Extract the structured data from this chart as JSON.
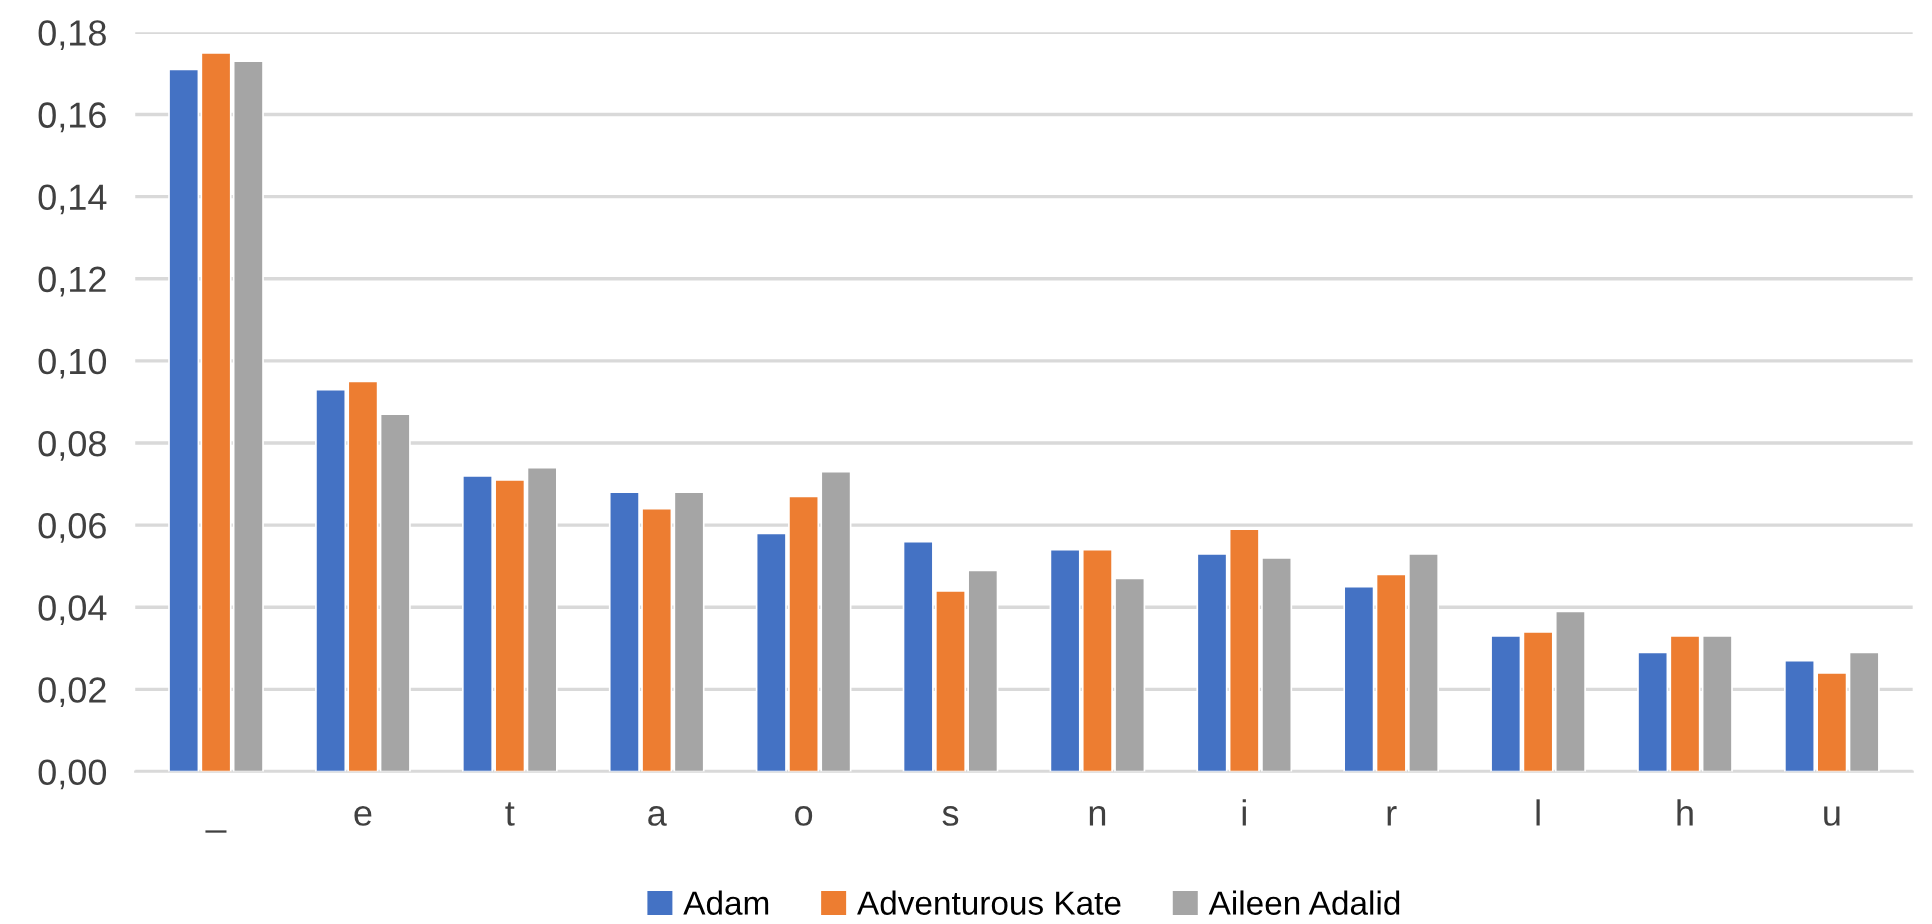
{
  "chart_data": {
    "type": "bar",
    "categories": [
      "_",
      "e",
      "t",
      "a",
      "o",
      "s",
      "n",
      "i",
      "r",
      "l",
      "h",
      "u"
    ],
    "series": [
      {
        "name": "Adam",
        "color": "#4472c4",
        "values": [
          0.171,
          0.093,
          0.072,
          0.068,
          0.058,
          0.056,
          0.054,
          0.053,
          0.045,
          0.033,
          0.029,
          0.027
        ]
      },
      {
        "name": "Adventurous Kate",
        "color": "#ed7d31",
        "values": [
          0.175,
          0.095,
          0.071,
          0.064,
          0.067,
          0.044,
          0.054,
          0.059,
          0.048,
          0.034,
          0.033,
          0.024
        ]
      },
      {
        "name": "Aileen Adalid",
        "color": "#a5a5a5",
        "values": [
          0.173,
          0.087,
          0.074,
          0.068,
          0.073,
          0.049,
          0.047,
          0.052,
          0.053,
          0.039,
          0.033,
          0.029
        ]
      }
    ],
    "ylim": [
      0,
      0.18
    ],
    "yticks": [
      {
        "value": 0,
        "label": "0,00"
      },
      {
        "value": 0.02,
        "label": "0,02"
      },
      {
        "value": 0.04,
        "label": "0,04"
      },
      {
        "value": 0.06,
        "label": "0,06"
      },
      {
        "value": 0.08,
        "label": "0,08"
      },
      {
        "value": 0.1,
        "label": "0,10"
      },
      {
        "value": 0.12,
        "label": "0,12"
      },
      {
        "value": 0.14,
        "label": "0,14"
      },
      {
        "value": 0.16,
        "label": "0,16"
      },
      {
        "value": 0.18,
        "label": "0,18"
      }
    ],
    "grid": "y",
    "legend": "bottom"
  }
}
